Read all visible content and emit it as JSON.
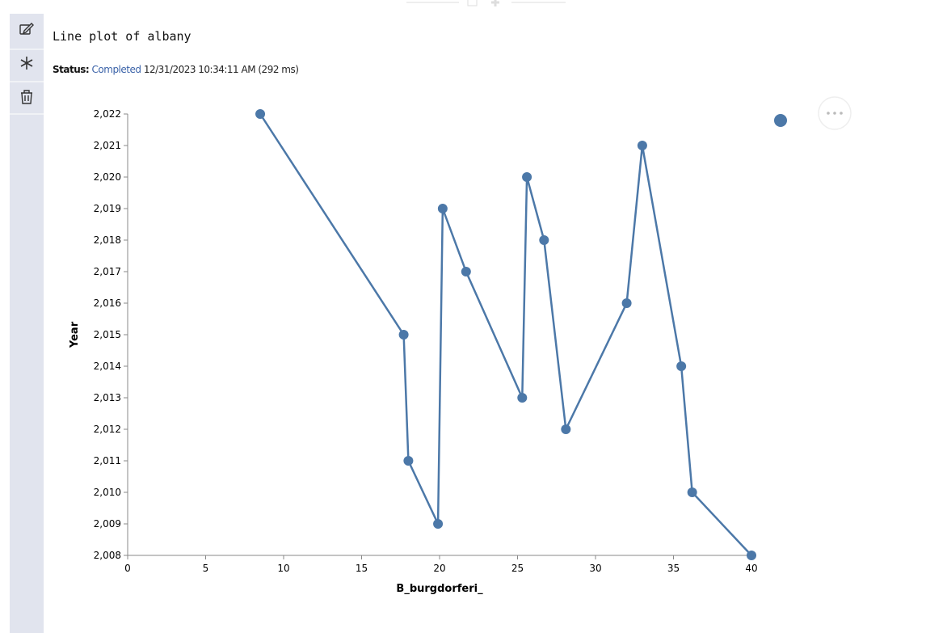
{
  "cell": {
    "title": "Line plot of albany",
    "status": {
      "label": "Status:",
      "state": "Completed",
      "timestamp": "12/31/2023 10:34:11 AM (292 ms)"
    }
  },
  "chart_data": {
    "type": "line",
    "x_label": "B_burgdorferi_",
    "y_label": "Year",
    "color": "#4c78a8",
    "x": [
      8.5,
      17.7,
      18.0,
      19.9,
      20.2,
      21.7,
      25.3,
      25.6,
      26.7,
      28.1,
      32.0,
      33.0,
      35.5,
      36.2,
      40.0
    ],
    "values": [
      2022,
      2015,
      2011,
      2009,
      2019,
      2017,
      2013,
      2020,
      2018,
      2012,
      2016,
      2021,
      2014,
      2010,
      2008
    ],
    "xlim": [
      0,
      40
    ],
    "xticks": [
      0,
      5,
      10,
      15,
      20,
      25,
      30,
      35,
      40
    ],
    "ylim": [
      2008,
      2022
    ],
    "yticks": [
      {
        "value": 2008,
        "label": "2,008"
      },
      {
        "value": 2009,
        "label": "2,009"
      },
      {
        "value": 2010,
        "label": "2,010"
      },
      {
        "value": 2011,
        "label": "2,011"
      },
      {
        "value": 2012,
        "label": "2,012"
      },
      {
        "value": 2013,
        "label": "2,013"
      },
      {
        "value": 2014,
        "label": "2,014"
      },
      {
        "value": 2015,
        "label": "2,015"
      },
      {
        "value": 2016,
        "label": "2,016"
      },
      {
        "value": 2017,
        "label": "2,017"
      },
      {
        "value": 2018,
        "label": "2,018"
      },
      {
        "value": 2019,
        "label": "2,019"
      },
      {
        "value": 2020,
        "label": "2,020"
      },
      {
        "value": 2021,
        "label": "2,021"
      },
      {
        "value": 2022,
        "label": "2,022"
      }
    ]
  }
}
